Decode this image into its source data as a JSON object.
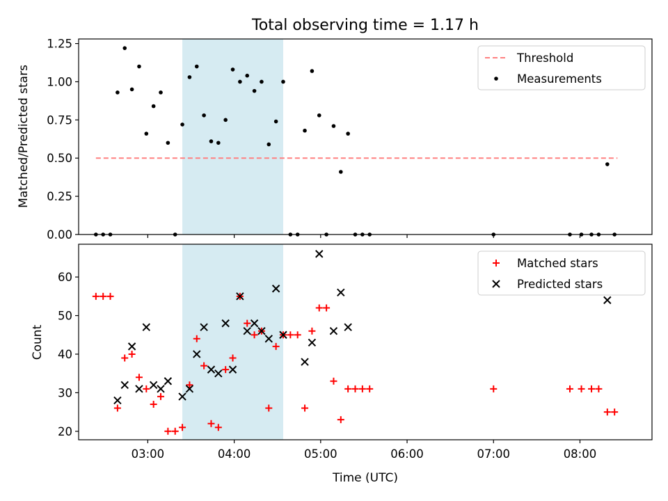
{
  "figure": {
    "title": "Total observing time = 1.17 h"
  },
  "chart_data": [
    {
      "type": "scatter",
      "panel": "top",
      "ylabel": "Matched/Predicted stars",
      "xlabel": "",
      "xlim": [
        "02:12",
        "08:50"
      ],
      "ylim": [
        0,
        1.28
      ],
      "yticks": [
        0.0,
        0.25,
        0.5,
        0.75,
        1.0,
        1.25
      ],
      "ytick_labels": [
        "0.00",
        "0.25",
        "0.50",
        "0.75",
        "1.00",
        "1.25"
      ],
      "xticks": [
        "03:00",
        "04:00",
        "05:00",
        "06:00",
        "07:00",
        "08:00"
      ],
      "show_xtick_labels": false,
      "grid": false,
      "legend": "top-right",
      "shaded_span": {
        "from": "03:24",
        "to": "04:34",
        "color": "#add8e6"
      },
      "series": [
        {
          "name": "Threshold",
          "kind": "dashed-line",
          "color": "#ff8080",
          "x": [
            "02:24",
            "08:26"
          ],
          "y": [
            0.5,
            0.5
          ]
        },
        {
          "name": "Measurements",
          "kind": "dot",
          "color": "#000000",
          "x": [
            "02:24",
            "02:29",
            "02:34",
            "02:39",
            "02:44",
            "02:49",
            "02:54",
            "02:59",
            "03:04",
            "03:09",
            "03:14",
            "03:19",
            "03:24",
            "03:29",
            "03:34",
            "03:39",
            "03:44",
            "03:49",
            "03:54",
            "03:59",
            "04:04",
            "04:09",
            "04:14",
            "04:19",
            "04:24",
            "04:29",
            "04:34",
            "04:39",
            "04:44",
            "04:49",
            "04:54",
            "04:59",
            "05:04",
            "05:09",
            "05:14",
            "05:19",
            "05:24",
            "05:29",
            "05:34",
            "07:00",
            "07:53",
            "08:01",
            "08:08",
            "08:13",
            "08:19",
            "08:24"
          ],
          "y": [
            0.0,
            0.0,
            0.0,
            0.93,
            1.22,
            0.95,
            1.1,
            0.66,
            0.84,
            0.93,
            0.6,
            0.0,
            0.72,
            1.03,
            1.1,
            0.78,
            0.61,
            0.6,
            0.75,
            1.08,
            1.0,
            1.04,
            0.94,
            1.0,
            0.59,
            0.74,
            1.0,
            0.0,
            0.0,
            0.68,
            1.07,
            0.78,
            0.0,
            0.71,
            0.41,
            0.66,
            0.0,
            0.0,
            0.0,
            0.0,
            0.0,
            0.0,
            0.0,
            0.0,
            0.46,
            0.0
          ]
        }
      ]
    },
    {
      "type": "scatter",
      "panel": "bottom",
      "ylabel": "Count",
      "xlabel": "Time (UTC)",
      "xlim": [
        "02:12",
        "08:50"
      ],
      "ylim": [
        17.8,
        68.5
      ],
      "yticks": [
        20,
        30,
        40,
        50,
        60
      ],
      "ytick_labels": [
        "20",
        "30",
        "40",
        "50",
        "60"
      ],
      "xticks": [
        "03:00",
        "04:00",
        "05:00",
        "06:00",
        "07:00",
        "08:00"
      ],
      "xtick_labels": [
        "03:00",
        "04:00",
        "05:00",
        "06:00",
        "07:00",
        "08:00"
      ],
      "grid": false,
      "legend": "top-right",
      "shaded_span": {
        "from": "03:24",
        "to": "04:34",
        "color": "#add8e6"
      },
      "series": [
        {
          "name": "Matched stars",
          "kind": "plus",
          "color": "#ff0000",
          "x": [
            "02:24",
            "02:29",
            "02:34",
            "02:39",
            "02:44",
            "02:49",
            "02:54",
            "02:59",
            "03:04",
            "03:09",
            "03:14",
            "03:19",
            "03:24",
            "03:29",
            "03:34",
            "03:39",
            "03:44",
            "03:49",
            "03:54",
            "03:59",
            "04:04",
            "04:09",
            "04:14",
            "04:19",
            "04:24",
            "04:29",
            "04:34",
            "04:39",
            "04:44",
            "04:49",
            "04:54",
            "04:59",
            "05:04",
            "05:09",
            "05:14",
            "05:19",
            "05:24",
            "05:29",
            "05:34",
            "07:00",
            "07:53",
            "08:01",
            "08:08",
            "08:13",
            "08:19",
            "08:24"
          ],
          "y": [
            55,
            55,
            55,
            26,
            39,
            40,
            34,
            31,
            27,
            29,
            20,
            20,
            21,
            32,
            44,
            37,
            22,
            21,
            36,
            39,
            55,
            48,
            45,
            46,
            26,
            42,
            45,
            45,
            45,
            26,
            46,
            52,
            52,
            33,
            23,
            31,
            31,
            31,
            31,
            31,
            31,
            31,
            31,
            31,
            25,
            25
          ]
        },
        {
          "name": "Predicted stars",
          "kind": "cross",
          "color": "#000000",
          "x": [
            "02:39",
            "02:44",
            "02:49",
            "02:54",
            "02:59",
            "03:04",
            "03:09",
            "03:14",
            "03:24",
            "03:29",
            "03:34",
            "03:39",
            "03:44",
            "03:49",
            "03:54",
            "03:59",
            "04:04",
            "04:09",
            "04:14",
            "04:19",
            "04:24",
            "04:29",
            "04:34",
            "04:49",
            "04:54",
            "04:59",
            "05:09",
            "05:14",
            "05:19",
            "08:19"
          ],
          "y": [
            28,
            32,
            42,
            31,
            47,
            32,
            31,
            33,
            29,
            31,
            40,
            47,
            36,
            35,
            48,
            36,
            55,
            46,
            48,
            46,
            44,
            57,
            45,
            38,
            43,
            66,
            46,
            56,
            47,
            54
          ]
        }
      ]
    }
  ]
}
